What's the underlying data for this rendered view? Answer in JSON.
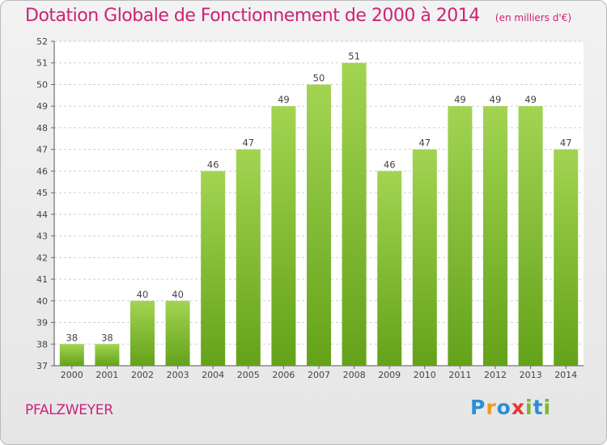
{
  "title": "Dotation Globale de Fonctionnement de 2000 à 2014",
  "unit": "(en milliers d'€)",
  "commune": "PFALZWEYER",
  "logo": {
    "text": "Proxiti",
    "letters": [
      {
        "ch": "P",
        "color": "#2b8fd6"
      },
      {
        "ch": "r",
        "color": "#f39c1a"
      },
      {
        "ch": "o",
        "color": "#2b8fd6"
      },
      {
        "ch": "x",
        "color": "#e53935"
      },
      {
        "ch": "i",
        "color": "#7cb82f"
      },
      {
        "ch": "t",
        "color": "#2b8fd6"
      },
      {
        "ch": "i",
        "color": "#7cb82f"
      }
    ]
  },
  "colors": {
    "title": "#cc2277",
    "bar_top": "#a2d452",
    "bar_bottom": "#64a21a",
    "grid": "#cfcfcf"
  },
  "chart_data": {
    "type": "bar",
    "categories": [
      "2000",
      "2001",
      "2002",
      "2003",
      "2004",
      "2005",
      "2006",
      "2007",
      "2008",
      "2009",
      "2010",
      "2011",
      "2012",
      "2013",
      "2014"
    ],
    "values": [
      38,
      38,
      40,
      40,
      46,
      47,
      49,
      50,
      51,
      46,
      47,
      49,
      49,
      49,
      47
    ],
    "ylim": [
      37,
      52
    ],
    "yticks": [
      37,
      38,
      39,
      40,
      41,
      42,
      43,
      44,
      45,
      46,
      47,
      48,
      49,
      50,
      51,
      52
    ],
    "grid": true,
    "xlabel": "",
    "ylabel": ""
  }
}
